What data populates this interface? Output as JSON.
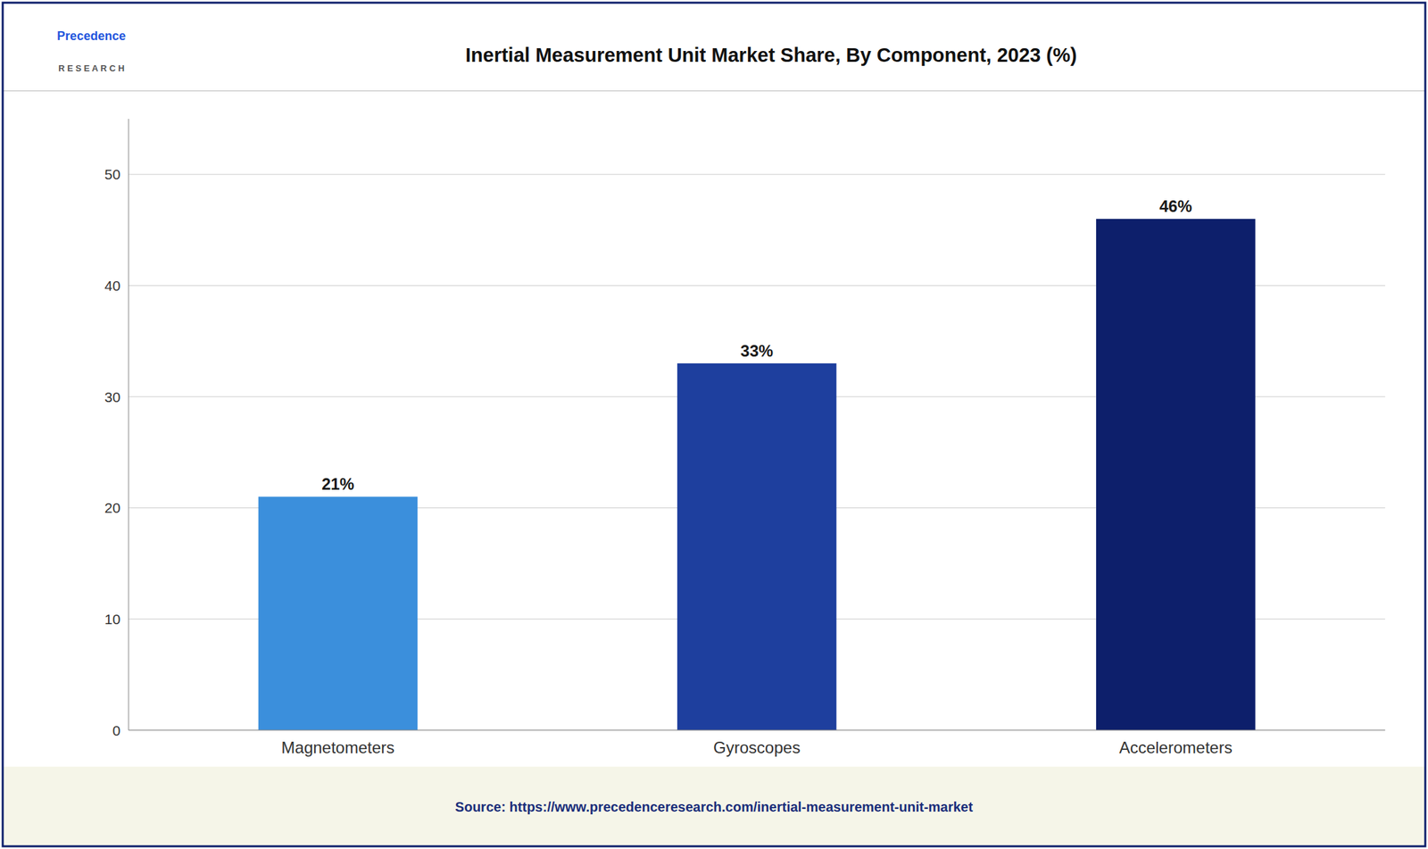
{
  "chart_data": {
    "type": "bar",
    "title": "Inertial Measurement Unit Market Share, By Component, 2023 (%)",
    "categories": [
      "Magnetometers",
      "Gyroscopes",
      "Accelerometers"
    ],
    "values": [
      21,
      33,
      46
    ],
    "value_labels": [
      "21%",
      "33%",
      "46%"
    ],
    "data_labels": true,
    "colors": [
      "#3b8fdc",
      "#1e3f9e",
      "#0d1f6b"
    ],
    "ylim": [
      0,
      55
    ],
    "yticks": [
      0,
      10,
      20,
      30,
      40,
      50
    ],
    "grid": true,
    "annotations": [
      "Precedence",
      "R E S E A R C H",
      "Source: https://www.precedenceresearch.com/inertial-measurement-unit-market"
    ]
  }
}
